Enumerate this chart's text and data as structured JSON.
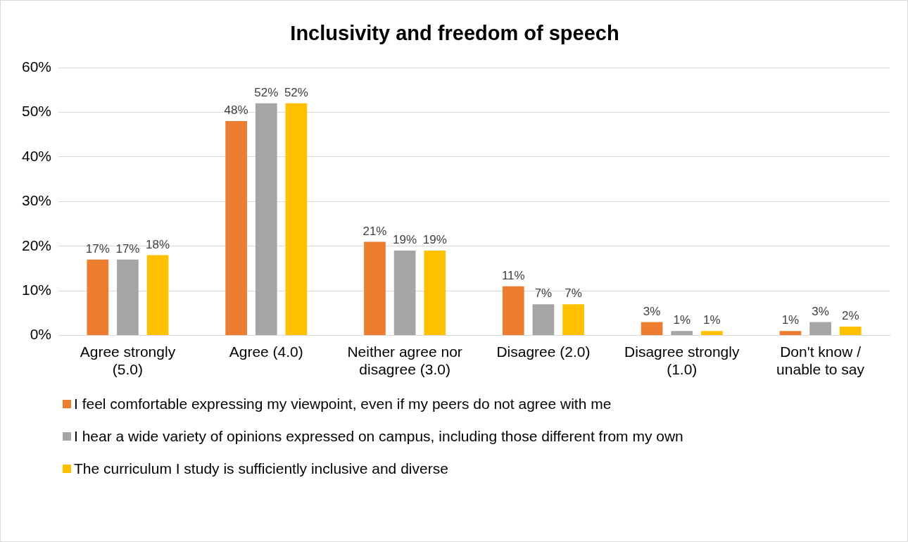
{
  "chart_data": {
    "type": "bar",
    "title": "Inclusivity and freedom of speech",
    "categories": [
      "Agree strongly (5.0)",
      "Agree (4.0)",
      "Neither agree nor disagree (3.0)",
      "Disagree (2.0)",
      "Disagree strongly (1.0)",
      "Don't know / unable to say"
    ],
    "series": [
      {
        "name": "I feel comfortable expressing my viewpoint, even if my peers do not agree with me",
        "color": "#ed7d31",
        "values": [
          17,
          48,
          21,
          11,
          3,
          1
        ],
        "value_labels": [
          "17%",
          "48%",
          "21%",
          "11%",
          "3%",
          "1%"
        ]
      },
      {
        "name": "I hear a wide variety of opinions expressed on campus, including those different from my own",
        "color": "#a5a5a5",
        "values": [
          17,
          52,
          19,
          7,
          1,
          3
        ],
        "value_labels": [
          "17%",
          "52%",
          "19%",
          "7%",
          "1%",
          "3%"
        ]
      },
      {
        "name": "The curriculum I study is sufficiently inclusive and diverse",
        "color": "#ffc000",
        "values": [
          18,
          52,
          19,
          7,
          1,
          2
        ],
        "value_labels": [
          "18%",
          "52%",
          "19%",
          "7%",
          "1%",
          "2%"
        ]
      }
    ],
    "ylim": [
      0,
      60
    ],
    "yticks": [
      {
        "value": 0,
        "label": "0%"
      },
      {
        "value": 10,
        "label": "10%"
      },
      {
        "value": 20,
        "label": "20%"
      },
      {
        "value": 30,
        "label": "30%"
      },
      {
        "value": 40,
        "label": "40%"
      },
      {
        "value": 50,
        "label": "50%"
      },
      {
        "value": 60,
        "label": "60%"
      }
    ],
    "grid": "y",
    "legend": "bottom"
  }
}
